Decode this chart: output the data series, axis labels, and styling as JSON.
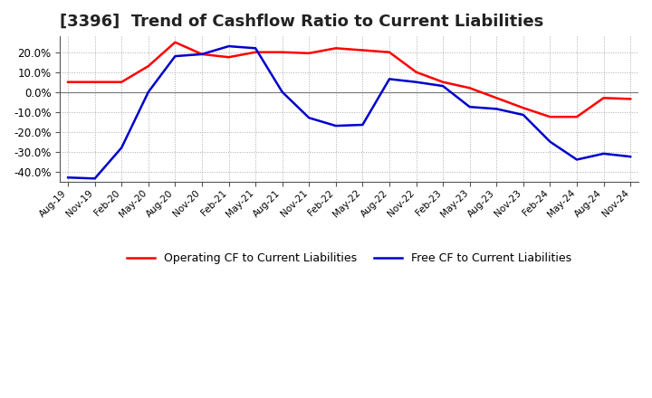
{
  "title": "[3396]  Trend of Cashflow Ratio to Current Liabilities",
  "x_labels": [
    "Aug-19",
    "Nov-19",
    "Feb-20",
    "May-20",
    "Aug-20",
    "Nov-20",
    "Feb-21",
    "May-21",
    "Aug-21",
    "Nov-21",
    "Feb-22",
    "May-22",
    "Aug-22",
    "Nov-22",
    "Feb-23",
    "May-23",
    "Aug-23",
    "Nov-23",
    "Feb-24",
    "May-24",
    "Aug-24",
    "Nov-24"
  ],
  "operating_cf": [
    5.0,
    5.0,
    5.0,
    13.0,
    25.0,
    19.0,
    17.5,
    20.0,
    20.0,
    19.5,
    22.0,
    21.0,
    20.0,
    10.0,
    5.0,
    2.0,
    -3.0,
    -8.0,
    -12.5,
    -12.5,
    -3.0,
    -3.5
  ],
  "free_cf": [
    -43.0,
    -43.5,
    -28.0,
    0.0,
    18.0,
    19.0,
    23.0,
    22.0,
    0.0,
    -13.0,
    -17.0,
    -16.5,
    6.5,
    5.0,
    3.0,
    -7.5,
    -8.5,
    -11.5,
    -25.0,
    -34.0,
    -31.0,
    -32.5
  ],
  "operating_color": "#ff0000",
  "free_color": "#0000cc",
  "ylim": [
    -45,
    28
  ],
  "yticks": [
    -40,
    -30,
    -20,
    -10,
    0,
    10,
    20
  ],
  "background_color": "#ffffff",
  "grid_color": "#aaaaaa",
  "title_fontsize": 13,
  "legend_labels": [
    "Operating CF to Current Liabilities",
    "Free CF to Current Liabilities"
  ]
}
